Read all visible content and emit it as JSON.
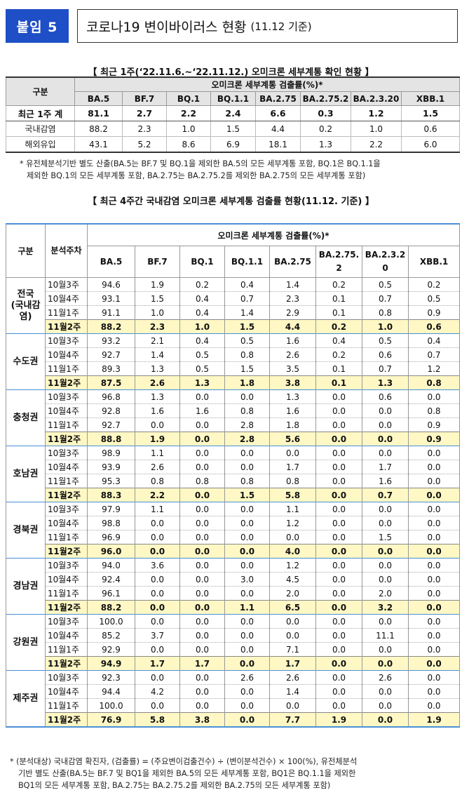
{
  "header": {
    "badge": "붙임 5",
    "title": "코로나19 변이바이러스 현황",
    "title_sub": "(11.12 기준)"
  },
  "table1": {
    "caption": "【 최근 1주(‘22.11.6.~‘22.11.12.) 오미크론 세부계통 확인 현황 】",
    "corner": "구분",
    "group_header": "오미크론 세부계통 검출률(%)*",
    "columns": [
      "BA.5",
      "BF.7",
      "BQ.1",
      "BQ.1.1",
      "BA.2.75",
      "BA.2.75.2",
      "BA.2.3.20",
      "XBB.1"
    ],
    "rows": [
      {
        "label": "최근 1주 계",
        "values": [
          "81.1",
          "2.7",
          "2.2",
          "2.4",
          "6.6",
          "0.3",
          "1.2",
          "1.5"
        ],
        "total": true
      },
      {
        "label": "국내감염",
        "values": [
          "88.2",
          "2.3",
          "1.0",
          "1.5",
          "4.4",
          "0.2",
          "1.0",
          "0.6"
        ],
        "total": false
      },
      {
        "label": "해외유입",
        "values": [
          "43.1",
          "5.2",
          "8.6",
          "6.9",
          "18.1",
          "1.3",
          "2.2",
          "6.0"
        ],
        "total": false
      }
    ],
    "note_line1": "* 유전체분석기반 별도 산출(BA.5는 BF.7 및 BQ.1을 제외한 BA.5의 모든 세부계통 포함, BQ.1은 BQ.1.1을",
    "note_line2": "제외한 BQ.1의 모든 세부계통 포함, BA.2.75는 BA.2.75.2를 제외한 BA.2.75의 모든 세부계통 포함)"
  },
  "table2": {
    "caption": "【 최근 4주간 국내감염 오미크론 세부계통 검출률 현황(11.12. 기준) 】",
    "corner": "구분",
    "period_header": "분석주차",
    "group_header": "오미크론 세부계통 검출률(%)*",
    "columns": [
      "BA.5",
      "BF.7",
      "BQ.1",
      "BQ.1.1",
      "BA.2.75",
      "BA.2.75.2",
      "BA.2.3.20",
      "XBB.1"
    ],
    "regions": [
      {
        "name": "전국\n(국내감염)",
        "weeks": [
          {
            "week": "10월3주",
            "values": [
              "94.6",
              "1.9",
              "0.2",
              "0.4",
              "1.4",
              "0.2",
              "0.5",
              "0.2"
            ]
          },
          {
            "week": "10월4주",
            "values": [
              "93.1",
              "1.5",
              "0.4",
              "0.7",
              "2.3",
              "0.1",
              "0.7",
              "0.5"
            ]
          },
          {
            "week": "11월1주",
            "values": [
              "91.1",
              "1.0",
              "0.4",
              "1.4",
              "2.9",
              "0.1",
              "0.8",
              "0.9"
            ]
          },
          {
            "week": "11월2주",
            "values": [
              "88.2",
              "2.3",
              "1.0",
              "1.5",
              "4.4",
              "0.2",
              "1.0",
              "0.6"
            ]
          }
        ]
      },
      {
        "name": "수도권",
        "weeks": [
          {
            "week": "10월3주",
            "values": [
              "93.2",
              "2.1",
              "0.4",
              "0.5",
              "1.6",
              "0.4",
              "0.5",
              "0.4"
            ]
          },
          {
            "week": "10월4주",
            "values": [
              "92.7",
              "1.4",
              "0.5",
              "0.8",
              "2.6",
              "0.2",
              "0.6",
              "0.7"
            ]
          },
          {
            "week": "11월1주",
            "values": [
              "89.3",
              "1.3",
              "0.5",
              "1.5",
              "3.5",
              "0.1",
              "0.7",
              "1.2"
            ]
          },
          {
            "week": "11월2주",
            "values": [
              "87.5",
              "2.6",
              "1.3",
              "1.8",
              "3.8",
              "0.1",
              "1.3",
              "0.8"
            ]
          }
        ]
      },
      {
        "name": "충청권",
        "weeks": [
          {
            "week": "10월3주",
            "values": [
              "96.8",
              "1.3",
              "0.0",
              "0.0",
              "1.3",
              "0.0",
              "0.6",
              "0.0"
            ]
          },
          {
            "week": "10월4주",
            "values": [
              "92.8",
              "1.6",
              "1.6",
              "0.8",
              "1.6",
              "0.0",
              "0.0",
              "0.8"
            ]
          },
          {
            "week": "11월1주",
            "values": [
              "92.7",
              "0.0",
              "0.0",
              "2.8",
              "1.8",
              "0.0",
              "0.0",
              "0.9"
            ]
          },
          {
            "week": "11월2주",
            "values": [
              "88.8",
              "1.9",
              "0.0",
              "2.8",
              "5.6",
              "0.0",
              "0.0",
              "0.9"
            ]
          }
        ]
      },
      {
        "name": "호남권",
        "weeks": [
          {
            "week": "10월3주",
            "values": [
              "98.9",
              "1.1",
              "0.0",
              "0.0",
              "0.0",
              "0.0",
              "0.0",
              "0.0"
            ]
          },
          {
            "week": "10월4주",
            "values": [
              "93.9",
              "2.6",
              "0.0",
              "0.0",
              "1.7",
              "0.0",
              "1.7",
              "0.0"
            ]
          },
          {
            "week": "11월1주",
            "values": [
              "95.3",
              "0.8",
              "0.8",
              "0.8",
              "0.8",
              "0.0",
              "1.6",
              "0.0"
            ]
          },
          {
            "week": "11월2주",
            "values": [
              "88.3",
              "2.2",
              "0.0",
              "1.5",
              "5.8",
              "0.0",
              "0.7",
              "0.0"
            ]
          }
        ]
      },
      {
        "name": "경북권",
        "weeks": [
          {
            "week": "10월3주",
            "values": [
              "97.9",
              "1.1",
              "0.0",
              "0.0",
              "1.1",
              "0.0",
              "0.0",
              "0.0"
            ]
          },
          {
            "week": "10월4주",
            "values": [
              "98.8",
              "0.0",
              "0.0",
              "0.0",
              "1.2",
              "0.0",
              "0.0",
              "0.0"
            ]
          },
          {
            "week": "11월1주",
            "values": [
              "96.9",
              "0.0",
              "0.0",
              "0.0",
              "0.0",
              "0.0",
              "1.5",
              "0.0"
            ]
          },
          {
            "week": "11월2주",
            "values": [
              "96.0",
              "0.0",
              "0.0",
              "0.0",
              "4.0",
              "0.0",
              "0.0",
              "0.0"
            ]
          }
        ]
      },
      {
        "name": "경남권",
        "weeks": [
          {
            "week": "10월3주",
            "values": [
              "94.0",
              "3.6",
              "0.0",
              "0.0",
              "1.2",
              "0.0",
              "0.0",
              "0.0"
            ]
          },
          {
            "week": "10월4주",
            "values": [
              "92.4",
              "0.0",
              "0.0",
              "3.0",
              "4.5",
              "0.0",
              "0.0",
              "0.0"
            ]
          },
          {
            "week": "11월1주",
            "values": [
              "96.1",
              "0.0",
              "0.0",
              "0.0",
              "2.0",
              "0.0",
              "2.0",
              "0.0"
            ]
          },
          {
            "week": "11월2주",
            "values": [
              "88.2",
              "0.0",
              "0.0",
              "1.1",
              "6.5",
              "0.0",
              "3.2",
              "0.0"
            ]
          }
        ]
      },
      {
        "name": "강원권",
        "weeks": [
          {
            "week": "10월3주",
            "values": [
              "100.0",
              "0.0",
              "0.0",
              "0.0",
              "0.0",
              "0.0",
              "0.0",
              "0.0"
            ]
          },
          {
            "week": "10월4주",
            "values": [
              "85.2",
              "3.7",
              "0.0",
              "0.0",
              "0.0",
              "0.0",
              "11.1",
              "0.0"
            ]
          },
          {
            "week": "11월1주",
            "values": [
              "92.9",
              "0.0",
              "0.0",
              "0.0",
              "7.1",
              "0.0",
              "0.0",
              "0.0"
            ]
          },
          {
            "week": "11월2주",
            "values": [
              "94.9",
              "1.7",
              "1.7",
              "0.0",
              "1.7",
              "0.0",
              "0.0",
              "0.0"
            ]
          }
        ]
      },
      {
        "name": "제주권",
        "weeks": [
          {
            "week": "10월3주",
            "values": [
              "92.3",
              "0.0",
              "0.0",
              "2.6",
              "2.6",
              "0.0",
              "2.6",
              "0.0"
            ]
          },
          {
            "week": "10월4주",
            "values": [
              "94.4",
              "4.2",
              "0.0",
              "0.0",
              "1.4",
              "0.0",
              "0.0",
              "0.0"
            ]
          },
          {
            "week": "11월1주",
            "values": [
              "100.0",
              "0.0",
              "0.0",
              "0.0",
              "0.0",
              "0.0",
              "0.0",
              "0.0"
            ]
          },
          {
            "week": "11월2주",
            "values": [
              "76.9",
              "5.8",
              "3.8",
              "0.0",
              "7.7",
              "1.9",
              "0.0",
              "1.9"
            ]
          }
        ]
      }
    ],
    "note_line1": "* (분석대상) 국내감염 확진자, (검출률) = (주요변이검출건수) ÷ (변이분석건수) × 100(%), 유전체분석",
    "note_line2": "기반 별도 산출(BA.5는 BF.7 및 BQ1을 제외한 BA.5의 모든 세부계통 포함, BQ1은 BQ.1.1을 제외한",
    "note_line3": "BQ1의 모든 세부계통 포함, BA.2.75는 BA.2.75.2를 제외한 BA.2.75의 모든 세부계통 포함)"
  }
}
